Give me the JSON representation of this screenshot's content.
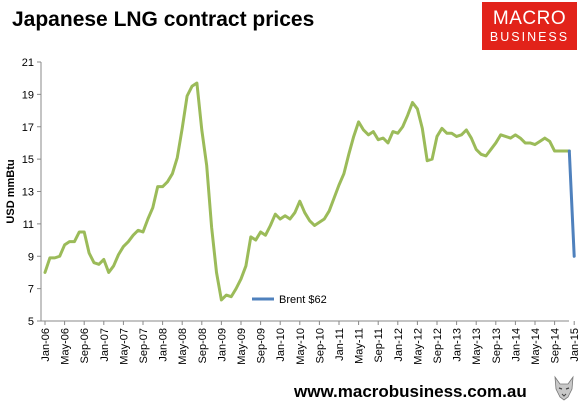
{
  "header": {
    "title": "Japanese LNG contract prices"
  },
  "logo": {
    "line1": "MACRO",
    "line2": "BUSINESS"
  },
  "footer": {
    "url": "www.macrobusiness.com.au"
  },
  "colors": {
    "lng_line": "#9bbb59",
    "brent_line": "#4f81bd",
    "logo_bg": "#e2231a"
  },
  "chart_data": {
    "type": "line",
    "title": "",
    "xlabel": "",
    "ylabel": "USD mmBtu",
    "ylim": [
      5,
      21
    ],
    "yticks": [
      5,
      7,
      9,
      11,
      13,
      15,
      17,
      19,
      21
    ],
    "grid": false,
    "legend_position": "bottom-center",
    "xtick_labels": [
      "Jan-06",
      "May-06",
      "Sep-06",
      "Jan-07",
      "May-07",
      "Sep-07",
      "Jan-08",
      "May-08",
      "Sep-08",
      "Jan-09",
      "May-09",
      "Sep-09",
      "Jan-10",
      "May-10",
      "Sep-10",
      "Jan-11",
      "May-11",
      "Sep-11",
      "Jan-12",
      "May-12",
      "Sep-12",
      "Jan-13",
      "May-13",
      "Sep-13",
      "Jan-14",
      "May-14",
      "Sep-14",
      "Jan-15"
    ],
    "series": [
      {
        "name": "",
        "color": "#9bbb59",
        "x": [
          "Jan-06",
          "Feb-06",
          "Mar-06",
          "Apr-06",
          "May-06",
          "Jun-06",
          "Jul-06",
          "Aug-06",
          "Sep-06",
          "Oct-06",
          "Nov-06",
          "Dec-06",
          "Jan-07",
          "Feb-07",
          "Mar-07",
          "Apr-07",
          "May-07",
          "Jun-07",
          "Jul-07",
          "Aug-07",
          "Sep-07",
          "Oct-07",
          "Nov-07",
          "Dec-07",
          "Jan-08",
          "Feb-08",
          "Mar-08",
          "Apr-08",
          "May-08",
          "Jun-08",
          "Jul-08",
          "Aug-08",
          "Sep-08",
          "Oct-08",
          "Nov-08",
          "Dec-08",
          "Jan-09",
          "Feb-09",
          "Mar-09",
          "Apr-09",
          "May-09",
          "Jun-09",
          "Jul-09",
          "Aug-09",
          "Sep-09",
          "Oct-09",
          "Nov-09",
          "Dec-09",
          "Jan-10",
          "Feb-10",
          "Mar-10",
          "Apr-10",
          "May-10",
          "Jun-10",
          "Jul-10",
          "Aug-10",
          "Sep-10",
          "Oct-10",
          "Nov-10",
          "Dec-10",
          "Jan-11",
          "Feb-11",
          "Mar-11",
          "Apr-11",
          "May-11",
          "Jun-11",
          "Jul-11",
          "Aug-11",
          "Sep-11",
          "Oct-11",
          "Nov-11",
          "Dec-11",
          "Jan-12",
          "Feb-12",
          "Mar-12",
          "Apr-12",
          "May-12",
          "Jun-12",
          "Jul-12",
          "Aug-12",
          "Sep-12",
          "Oct-12",
          "Nov-12",
          "Dec-12",
          "Jan-13",
          "Feb-13",
          "Mar-13",
          "Apr-13",
          "May-13",
          "Jun-13",
          "Jul-13",
          "Aug-13",
          "Sep-13",
          "Oct-13",
          "Nov-13",
          "Dec-13",
          "Jan-14",
          "Feb-14",
          "Mar-14",
          "Apr-14",
          "May-14",
          "Jun-14",
          "Jul-14",
          "Aug-14",
          "Sep-14",
          "Oct-14",
          "Nov-14",
          "Dec-14"
        ],
        "values": [
          8.0,
          8.9,
          8.9,
          9.0,
          9.7,
          9.9,
          9.9,
          10.5,
          10.5,
          9.2,
          8.6,
          8.5,
          8.8,
          8.0,
          8.4,
          9.1,
          9.6,
          9.9,
          10.3,
          10.6,
          10.5,
          11.3,
          12.0,
          13.3,
          13.3,
          13.6,
          14.1,
          15.1,
          16.9,
          18.9,
          19.5,
          19.7,
          16.8,
          14.6,
          10.8,
          8.0,
          6.3,
          6.6,
          6.5,
          7.0,
          7.6,
          8.4,
          10.2,
          10.0,
          10.5,
          10.3,
          10.9,
          11.6,
          11.3,
          11.5,
          11.3,
          11.7,
          12.4,
          11.7,
          11.2,
          10.9,
          11.1,
          11.3,
          11.8,
          12.6,
          13.4,
          14.1,
          15.3,
          16.4,
          17.3,
          16.8,
          16.5,
          16.7,
          16.2,
          16.3,
          16.0,
          16.7,
          16.6,
          17.0,
          17.7,
          18.5,
          18.1,
          16.9,
          14.9,
          15.0,
          16.4,
          16.9,
          16.6,
          16.6,
          16.4,
          16.5,
          16.8,
          16.3,
          15.6,
          15.3,
          15.2,
          15.6,
          16.0,
          16.5,
          16.4,
          16.3,
          16.5,
          16.3,
          16.0,
          16.0,
          15.9,
          16.1,
          16.3,
          16.1,
          15.5,
          15.5,
          15.5,
          15.5
        ]
      },
      {
        "name": "Brent $62",
        "color": "#4f81bd",
        "x": [
          "Dec-14",
          "Jan-15"
        ],
        "values": [
          15.5,
          9.0
        ]
      }
    ]
  }
}
